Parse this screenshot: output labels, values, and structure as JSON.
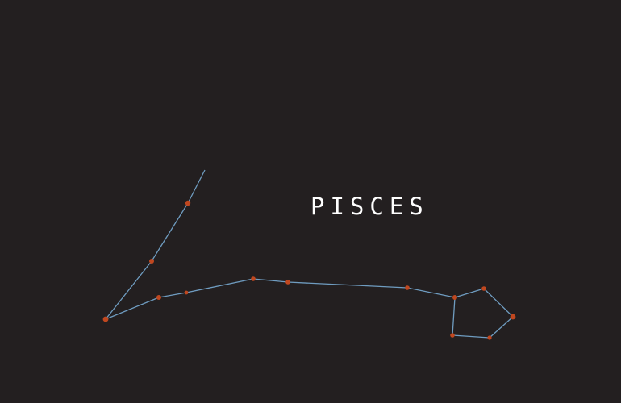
{
  "title": "PISCES",
  "colors": {
    "background": "#231f20",
    "line": "#6f9cc0",
    "star": "#c0471f",
    "title": "#ffffff"
  }
}
